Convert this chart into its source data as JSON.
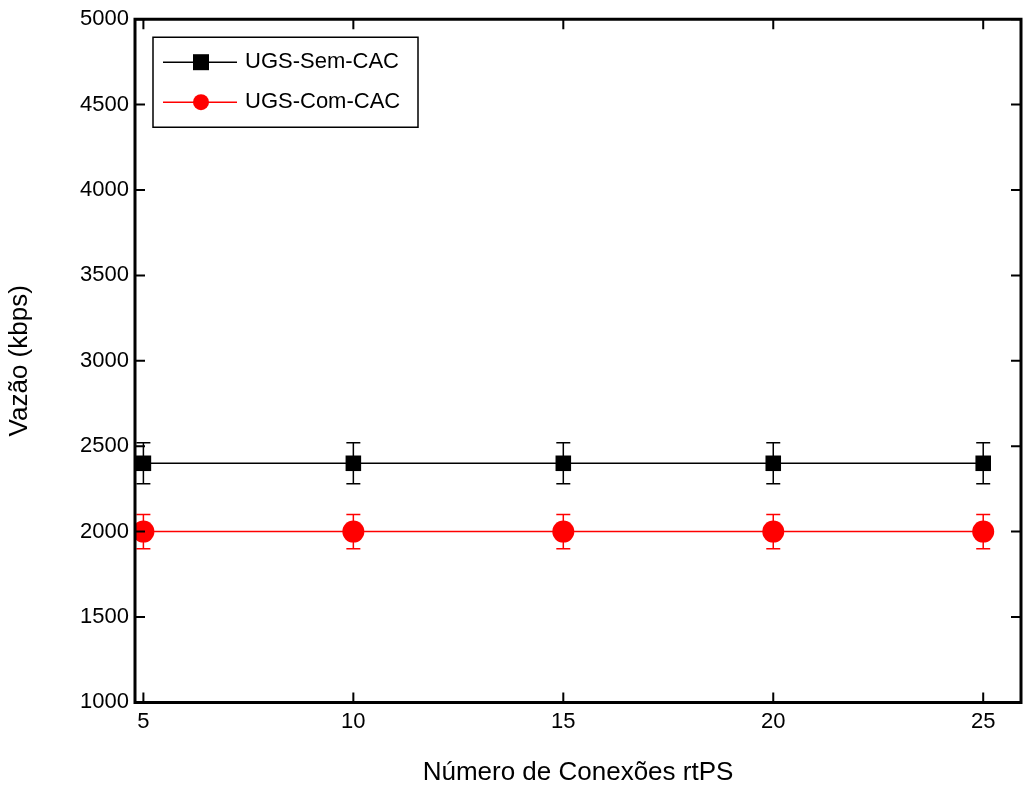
{
  "chart_data": {
    "type": "line",
    "xlabel": "Número de Conexões rtPS",
    "ylabel": "Vazão (kbps)",
    "x": [
      5,
      10,
      15,
      20,
      25
    ],
    "series": [
      {
        "name": "UGS-Sem-CAC",
        "color": "#000000",
        "marker": "square",
        "values": [
          2400,
          2400,
          2400,
          2400,
          2400
        ],
        "errors": [
          120,
          120,
          120,
          120,
          120
        ]
      },
      {
        "name": "UGS-Com-CAC",
        "color": "#ff0000",
        "marker": "circle",
        "values": [
          2000,
          2000,
          2000,
          2000,
          2000
        ],
        "errors": [
          100,
          100,
          100,
          100,
          100
        ]
      }
    ],
    "xlim": [
      4.8,
      25.9
    ],
    "xticks": [
      5,
      10,
      15,
      20,
      25
    ],
    "ylim": [
      1000,
      5000
    ],
    "yticks": [
      1000,
      1500,
      2000,
      2500,
      3000,
      3500,
      4000,
      4500,
      5000
    ],
    "grid": false,
    "legend": "top left",
    "line_style": "solid"
  }
}
